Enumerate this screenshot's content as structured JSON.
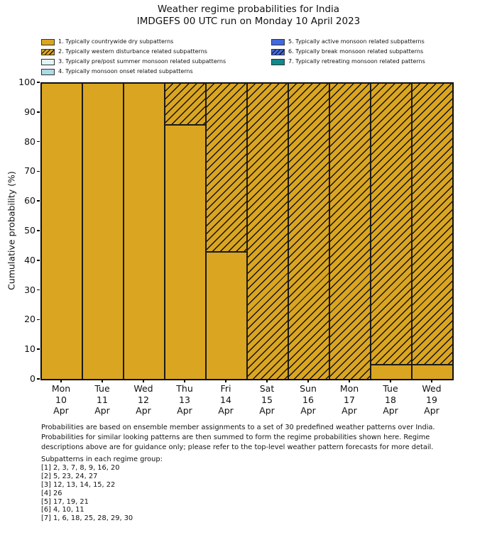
{
  "title": {
    "line1": "Weather regime probabilities for India",
    "line2": "IMDGEFS 00 UTC run on Monday 10 April 2023"
  },
  "legend": {
    "items": [
      {
        "label": "1. Typically countrywide dry subpatterns",
        "color": "#DAA520",
        "hatch": false
      },
      {
        "label": "2. Typically western disturbance related subpatterns",
        "color": "#DAA520",
        "hatch": true
      },
      {
        "label": "3. Typically pre/post summer monsoon related subpatterns",
        "color": "#E3F4F7",
        "hatch": false
      },
      {
        "label": "4. Typically monsoon onset related subpatterns",
        "color": "#ADD8E6",
        "hatch": false
      },
      {
        "label": "5. Typically active monsoon related subpatterns",
        "color": "#4169E1",
        "hatch": false
      },
      {
        "label": "6. Typically break monsoon related subpatterns",
        "color": "#4169E1",
        "hatch": true
      },
      {
        "label": "7. Typically retreating monsoon related patterns",
        "color": "#108A8C",
        "hatch": false
      }
    ]
  },
  "chart_data": {
    "type": "bar",
    "stacked": true,
    "title": "Weather regime probabilities for India",
    "subtitle": "IMDGEFS 00 UTC run on Monday 10 April 2023",
    "ylabel": "Cumulative probability (%)",
    "xlabel": "",
    "ylim": [
      0,
      100
    ],
    "yticks": [
      0,
      10,
      20,
      30,
      40,
      50,
      60,
      70,
      80,
      90,
      100
    ],
    "grid": false,
    "legend_position": "top",
    "bar_edge_color": "#1a1a1a",
    "categories": [
      "Mon 10 Apr",
      "Tue 11 Apr",
      "Wed 12 Apr",
      "Thu 13 Apr",
      "Fri 14 Apr",
      "Sat 15 Apr",
      "Sun 16 Apr",
      "Mon 17 Apr",
      "Tue 18 Apr",
      "Wed 19 Apr"
    ],
    "x_tick_labels": [
      {
        "dow": "Mon",
        "day": "10",
        "month": "Apr"
      },
      {
        "dow": "Tue",
        "day": "11",
        "month": "Apr"
      },
      {
        "dow": "Wed",
        "day": "12",
        "month": "Apr"
      },
      {
        "dow": "Thu",
        "day": "13",
        "month": "Apr"
      },
      {
        "dow": "Fri",
        "day": "14",
        "month": "Apr"
      },
      {
        "dow": "Sat",
        "day": "15",
        "month": "Apr"
      },
      {
        "dow": "Sun",
        "day": "16",
        "month": "Apr"
      },
      {
        "dow": "Mon",
        "day": "17",
        "month": "Apr"
      },
      {
        "dow": "Tue",
        "day": "18",
        "month": "Apr"
      },
      {
        "dow": "Wed",
        "day": "19",
        "month": "Apr"
      }
    ],
    "series": [
      {
        "name": "1. Typically countrywide dry subpatterns",
        "color": "#DAA520",
        "hatch": false,
        "values": [
          100,
          100,
          100,
          86,
          43,
          0,
          0,
          0,
          5,
          5
        ]
      },
      {
        "name": "2. Typically western disturbance related subpatterns",
        "color": "#DAA520",
        "hatch": true,
        "values": [
          0,
          0,
          0,
          14,
          57,
          100,
          100,
          100,
          95,
          95
        ]
      },
      {
        "name": "3. Typically pre/post summer monsoon related subpatterns",
        "color": "#E3F4F7",
        "hatch": false,
        "values": [
          0,
          0,
          0,
          0,
          0,
          0,
          0,
          0,
          0,
          0
        ]
      },
      {
        "name": "4. Typically monsoon onset related subpatterns",
        "color": "#ADD8E6",
        "hatch": false,
        "values": [
          0,
          0,
          0,
          0,
          0,
          0,
          0,
          0,
          0,
          0
        ]
      },
      {
        "name": "5. Typically active monsoon related subpatterns",
        "color": "#4169E1",
        "hatch": false,
        "values": [
          0,
          0,
          0,
          0,
          0,
          0,
          0,
          0,
          0,
          0
        ]
      },
      {
        "name": "6. Typically break monsoon related subpatterns",
        "color": "#4169E1",
        "hatch": true,
        "values": [
          0,
          0,
          0,
          0,
          0,
          0,
          0,
          0,
          0,
          0
        ]
      },
      {
        "name": "7. Typically retreating monsoon related patterns",
        "color": "#108A8C",
        "hatch": false,
        "values": [
          0,
          0,
          0,
          0,
          0,
          0,
          0,
          0,
          0,
          0
        ]
      }
    ]
  },
  "notes": {
    "lines": [
      "Probabilities are based on ensemble member assignments to a set of 30 predefined weather patterns over India.",
      "Probabilities for similar looking patterns are then summed to form the regime probabilities shown here. Regime",
      "descriptions above are for guidance only; please refer to the top-level weather pattern forecasts for more detail."
    ]
  },
  "subpatterns": {
    "heading": "Subpatterns in each regime group:",
    "groups": [
      "[1] 2, 3, 7, 8, 9, 16, 20",
      "[2] 5, 23, 24, 27",
      "[3] 12, 13, 14, 15, 22",
      "[4] 26",
      "[5] 17, 19, 21",
      "[6] 4, 10, 11",
      "[7] 1, 6, 18, 25, 28, 29, 30"
    ]
  }
}
